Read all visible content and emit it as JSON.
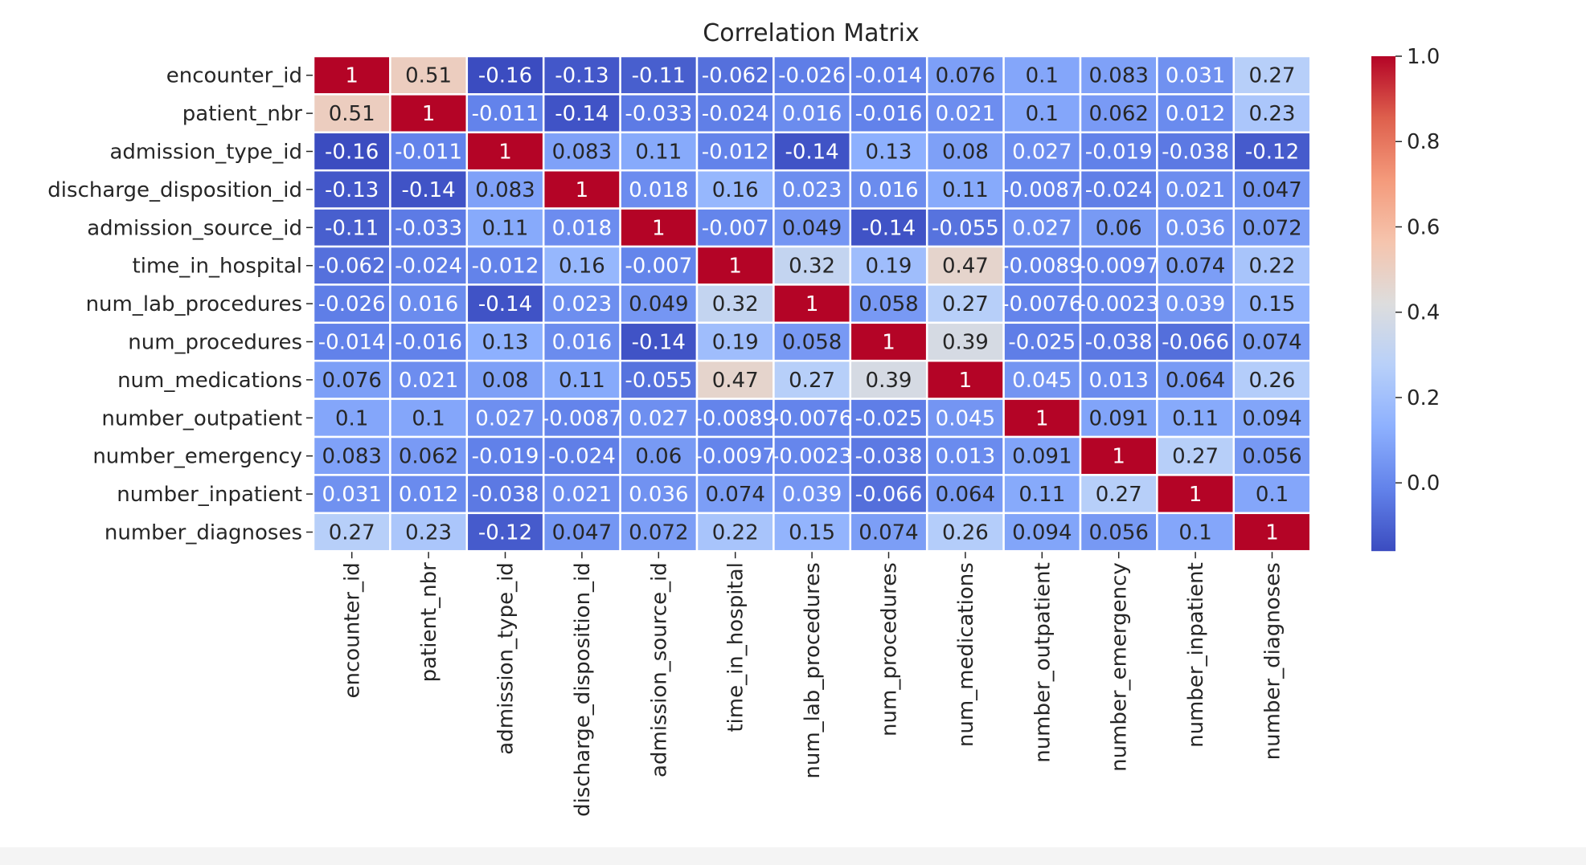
{
  "chart_data": {
    "type": "heatmap",
    "title": "Correlation Matrix",
    "labels": [
      "encounter_id",
      "patient_nbr",
      "admission_type_id",
      "discharge_disposition_id",
      "admission_source_id",
      "time_in_hospital",
      "num_lab_procedures",
      "num_procedures",
      "num_medications",
      "number_outpatient",
      "number_emergency",
      "number_inpatient",
      "number_diagnoses"
    ],
    "annotations": [
      [
        "1",
        "0.51",
        "-0.16",
        "-0.13",
        "-0.11",
        "-0.062",
        "-0.026",
        "-0.014",
        "0.076",
        "0.1",
        "0.083",
        "0.031",
        "0.27"
      ],
      [
        "0.51",
        "1",
        "-0.011",
        "-0.14",
        "-0.033",
        "-0.024",
        "0.016",
        "-0.016",
        "0.021",
        "0.1",
        "0.062",
        "0.012",
        "0.23"
      ],
      [
        "-0.16",
        "-0.011",
        "1",
        "0.083",
        "0.11",
        "-0.012",
        "-0.14",
        "0.13",
        "0.08",
        "0.027",
        "-0.019",
        "-0.038",
        "-0.12"
      ],
      [
        "-0.13",
        "-0.14",
        "0.083",
        "1",
        "0.018",
        "0.16",
        "0.023",
        "0.016",
        "0.11",
        "-0.0087",
        "-0.024",
        "0.021",
        "0.047"
      ],
      [
        "-0.11",
        "-0.033",
        "0.11",
        "0.018",
        "1",
        "-0.007",
        "0.049",
        "-0.14",
        "-0.055",
        "0.027",
        "0.06",
        "0.036",
        "0.072"
      ],
      [
        "-0.062",
        "-0.024",
        "-0.012",
        "0.16",
        "-0.007",
        "1",
        "0.32",
        "0.19",
        "0.47",
        "-0.0089",
        "-0.0097",
        "0.074",
        "0.22"
      ],
      [
        "-0.026",
        "0.016",
        "-0.14",
        "0.023",
        "0.049",
        "0.32",
        "1",
        "0.058",
        "0.27",
        "-0.0076",
        "-0.0023",
        "0.039",
        "0.15"
      ],
      [
        "-0.014",
        "-0.016",
        "0.13",
        "0.016",
        "-0.14",
        "0.19",
        "0.058",
        "1",
        "0.39",
        "-0.025",
        "-0.038",
        "-0.066",
        "0.074"
      ],
      [
        "0.076",
        "0.021",
        "0.08",
        "0.11",
        "-0.055",
        "0.47",
        "0.27",
        "0.39",
        "1",
        "0.045",
        "0.013",
        "0.064",
        "0.26"
      ],
      [
        "0.1",
        "0.1",
        "0.027",
        "-0.0087",
        "0.027",
        "-0.0089",
        "-0.0076",
        "-0.025",
        "0.045",
        "1",
        "0.091",
        "0.11",
        "0.094"
      ],
      [
        "0.083",
        "0.062",
        "-0.019",
        "-0.024",
        "0.06",
        "-0.0097",
        "-0.0023",
        "-0.038",
        "0.013",
        "0.091",
        "1",
        "0.27",
        "0.056"
      ],
      [
        "0.031",
        "0.012",
        "-0.038",
        "0.021",
        "0.036",
        "0.074",
        "0.039",
        "-0.066",
        "0.064",
        "0.11",
        "0.27",
        "1",
        "0.1"
      ],
      [
        "0.27",
        "0.23",
        "-0.12",
        "0.047",
        "0.072",
        "0.22",
        "0.15",
        "0.074",
        "0.26",
        "0.094",
        "0.056",
        "0.1",
        "1"
      ]
    ],
    "colormap": "coolwarm",
    "colorbar": {
      "min": -0.16,
      "max": 1.0,
      "ticks": [
        "1.0",
        "0.8",
        "0.6",
        "0.4",
        "0.2",
        "0.0"
      ]
    },
    "colors": {
      "low": "#3b4cc0",
      "mid": "#dddddd",
      "high": "#b40426",
      "gridline": "#ffffff",
      "text": "#262626"
    },
    "grid": true
  }
}
